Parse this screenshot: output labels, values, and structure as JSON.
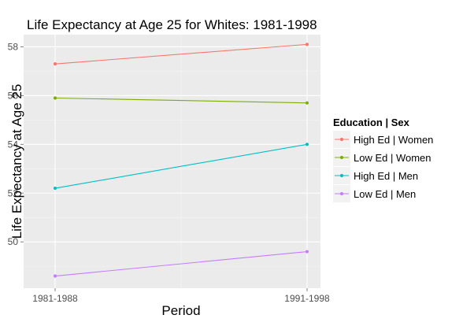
{
  "chart_data": {
    "type": "line",
    "title": "Life Expectancy at Age 25 for Whites: 1981-1998",
    "xlabel": "Period",
    "ylabel": "Life Expectancy at Age 25",
    "categories": [
      "1981-1988",
      "1991-1998"
    ],
    "ylim": [
      48.1,
      58.5
    ],
    "yticks": [
      50,
      52,
      54,
      56,
      58
    ],
    "grid": true,
    "legend_title": "Education | Sex",
    "legend_position": "right",
    "series": [
      {
        "name": "High Ed | Women",
        "color": "#f8766d",
        "values": [
          57.3,
          58.1
        ]
      },
      {
        "name": "Low Ed | Women",
        "color": "#7cae00",
        "values": [
          55.9,
          55.7
        ]
      },
      {
        "name": "High Ed | Men",
        "color": "#00bfc4",
        "values": [
          52.2,
          54.0
        ]
      },
      {
        "name": "Low Ed | Men",
        "color": "#c77cff",
        "values": [
          48.6,
          49.6
        ]
      }
    ]
  }
}
